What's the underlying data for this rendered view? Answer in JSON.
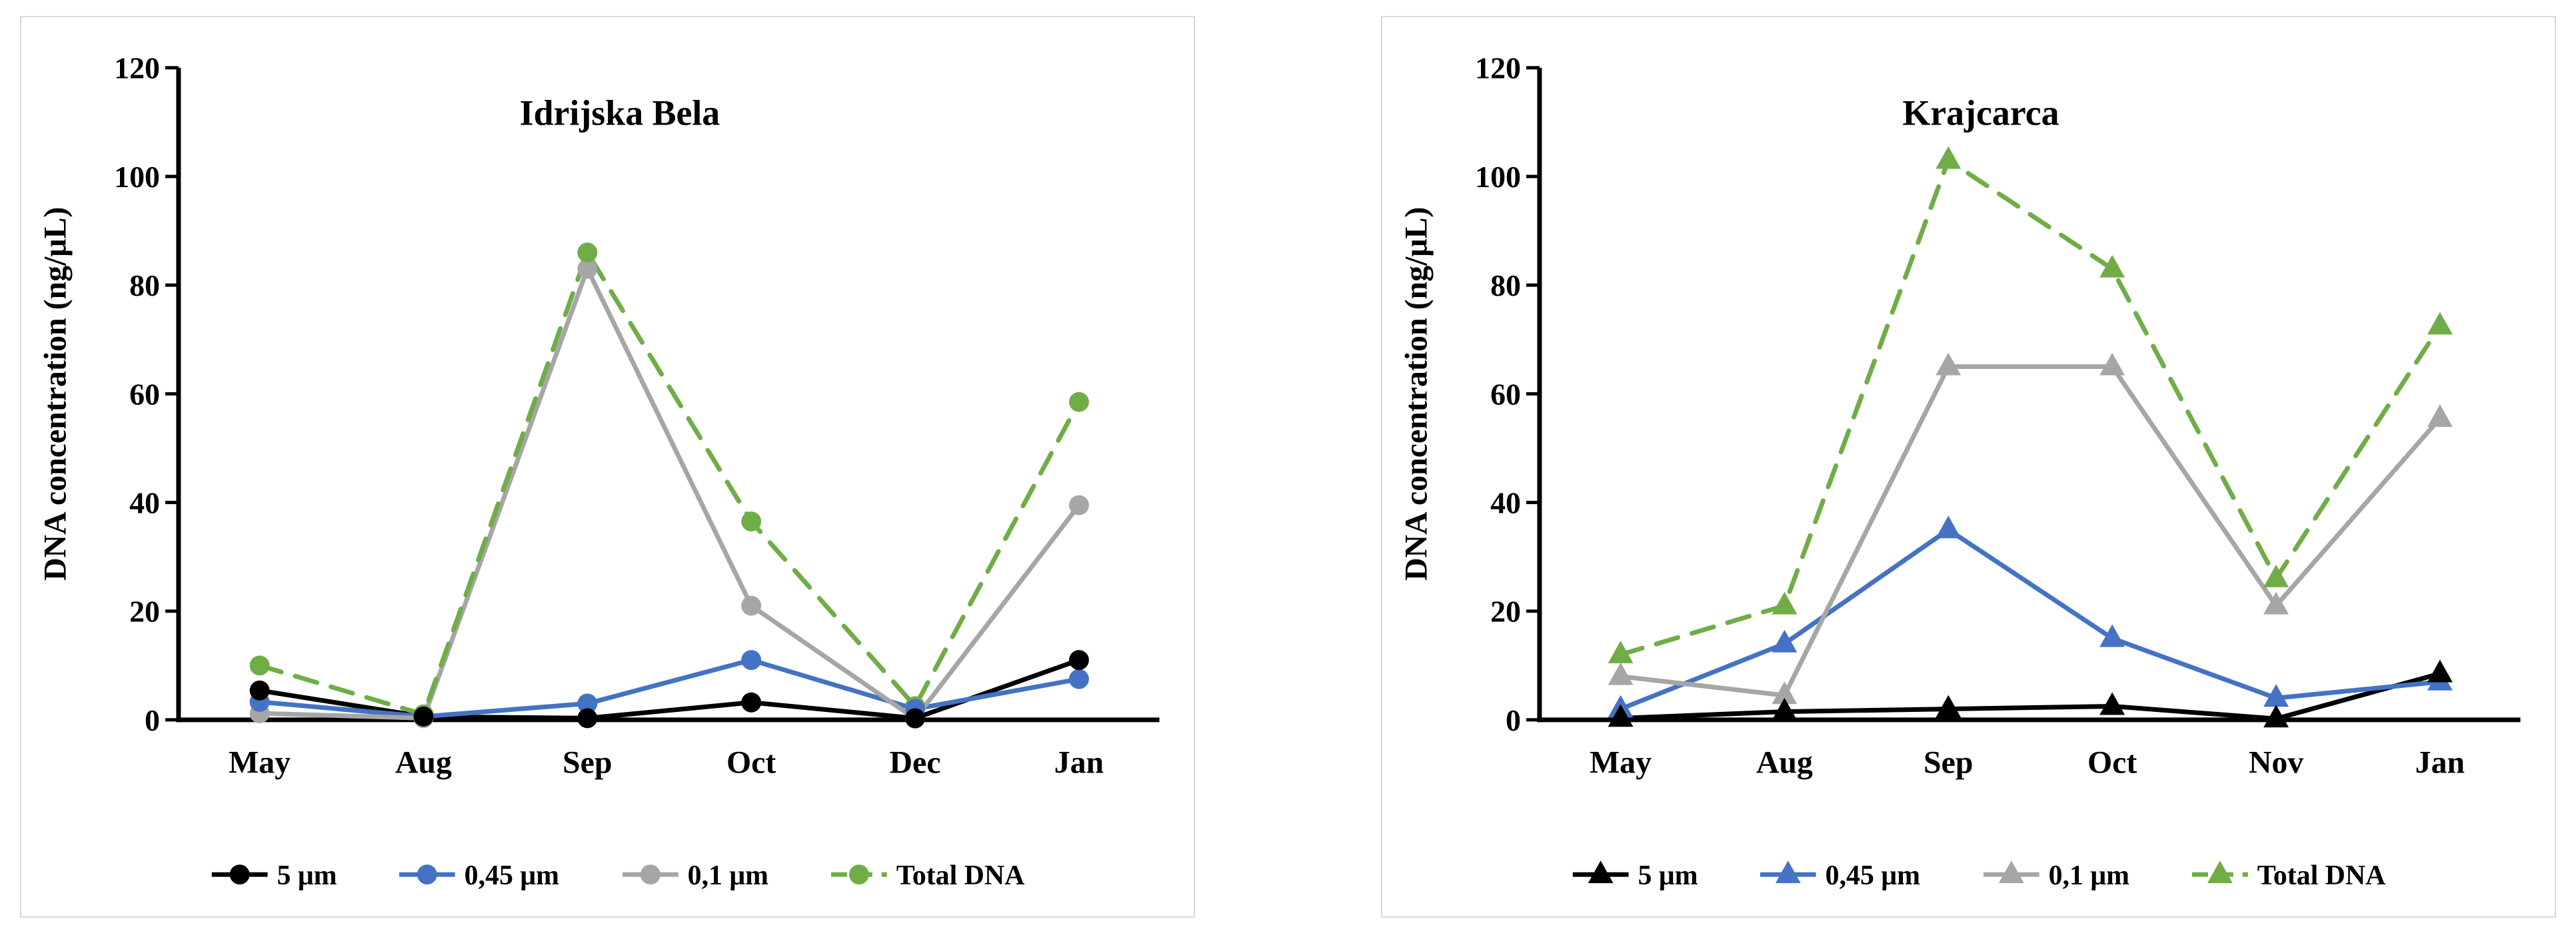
{
  "page": {
    "background_color": "#ffffff",
    "panel_border_color": "#d9d9d9"
  },
  "chart_data": [
    {
      "type": "line",
      "title": "Idrijska Bela",
      "xlabel": "",
      "ylabel": "DNA concentration (ng/μL)",
      "marker": "circle",
      "grid": false,
      "legend_position": "bottom",
      "ylim": [
        0,
        120
      ],
      "yticks": [
        0,
        20,
        40,
        60,
        80,
        100,
        120
      ],
      "categories": [
        "May",
        "Aug",
        "Sep",
        "Oct",
        "Dec",
        "Jan"
      ],
      "series": [
        {
          "name": "5 μm",
          "color": "#000000",
          "dashed": false,
          "values": [
            5.4,
            0.6,
            0.3,
            3.2,
            0.3,
            11
          ]
        },
        {
          "name": "0,45 μm",
          "color": "#4472c4",
          "dashed": false,
          "values": [
            3.3,
            0.6,
            3,
            11,
            2,
            7.5
          ]
        },
        {
          "name": "0,1 μm",
          "color": "#a6a6a6",
          "dashed": false,
          "values": [
            1.2,
            0.3,
            83,
            21,
            0.2,
            39.5
          ]
        },
        {
          "name": "Total DNA",
          "color": "#70ad47",
          "dashed": true,
          "values": [
            10,
            1,
            86,
            36.5,
            2.5,
            58.5
          ]
        }
      ]
    },
    {
      "type": "line",
      "title": "Krajcarca",
      "xlabel": "",
      "ylabel": "DNA concentration (ng/μL)",
      "marker": "triangle",
      "grid": false,
      "legend_position": "bottom",
      "ylim": [
        0,
        120
      ],
      "yticks": [
        0,
        20,
        40,
        60,
        80,
        100,
        120
      ],
      "categories": [
        "May",
        "Aug",
        "Sep",
        "Oct",
        "Nov",
        "Jan"
      ],
      "series": [
        {
          "name": "5 μm",
          "color": "#000000",
          "dashed": false,
          "values": [
            0.3,
            1.5,
            2,
            2.5,
            0.2,
            8.5
          ]
        },
        {
          "name": "0,45 μm",
          "color": "#4472c4",
          "dashed": false,
          "values": [
            2,
            14,
            35,
            15,
            4,
            7
          ]
        },
        {
          "name": "0,1 μm",
          "color": "#a6a6a6",
          "dashed": false,
          "values": [
            8,
            4.5,
            65,
            65,
            21,
            55.5
          ]
        },
        {
          "name": "Total DNA",
          "color": "#70ad47",
          "dashed": true,
          "values": [
            12,
            21,
            103,
            83,
            26,
            72.5
          ]
        }
      ]
    }
  ]
}
